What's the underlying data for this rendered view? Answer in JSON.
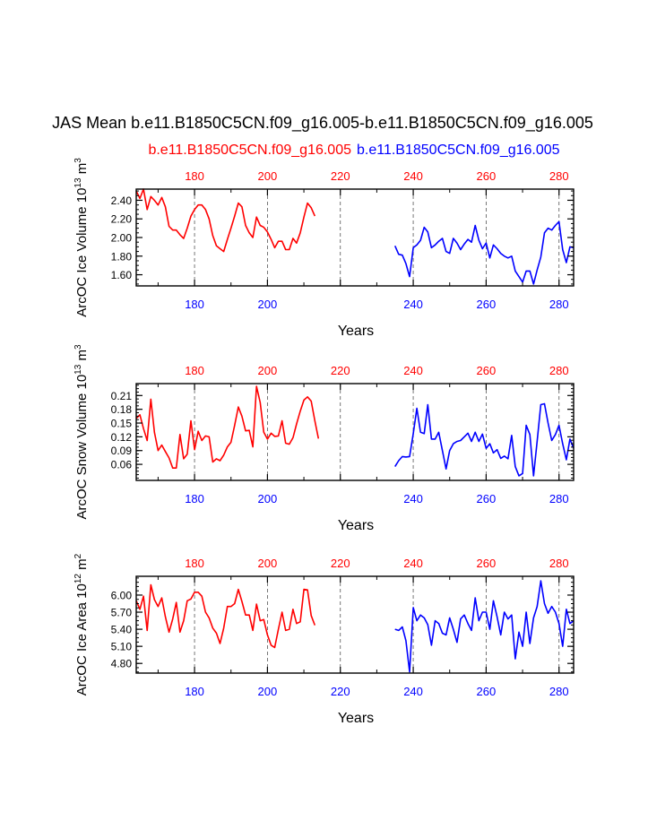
{
  "colors": {
    "red": "#ff0000",
    "blue": "#0000ff",
    "black": "#000000"
  },
  "header": {
    "title": "JAS Mean b.e11.B1850C5CN.f09_g16.005-b.e11.B1850C5CN.f09_g16.005",
    "legend_red": "b.e11.B1850C5CN.f09_g16.005",
    "legend_blue": "b.e11.B1850C5CN.f09_g16.005"
  },
  "chart_data": [
    {
      "type": "line",
      "ylabel_main": "ArcOC Ice Volume 10",
      "ylabel_exp1": "13",
      "ylabel_unit": " m",
      "ylabel_exp2": "3",
      "xlabel": "Years",
      "xlim": [
        164,
        284
      ],
      "ylim": [
        1.48,
        2.52
      ],
      "yticks": [
        1.6,
        1.8,
        2.0,
        2.2,
        2.4
      ],
      "ytick_labels": [
        "1.60",
        "1.80",
        "2.00",
        "2.20",
        "2.40"
      ],
      "top_ticks": [
        180,
        200,
        220,
        240,
        260,
        280
      ],
      "top_tick_labels": [
        "180",
        "200",
        "220",
        "240",
        "260",
        "280"
      ],
      "bottom_ticks": [
        180,
        200,
        240,
        260,
        280
      ],
      "bottom_tick_labels": [
        "180",
        "200",
        "240",
        "260",
        "280"
      ],
      "grid_x": [
        180,
        200,
        220,
        240,
        260,
        280
      ],
      "series": [
        {
          "name": "b.e11.B1850C5CN.f09_g16.005",
          "color": "#ff0000",
          "x_start": 164,
          "values": [
            2.5,
            2.42,
            2.52,
            2.3,
            2.44,
            2.4,
            2.35,
            2.43,
            2.33,
            2.12,
            2.08,
            2.08,
            2.03,
            1.99,
            2.1,
            2.23,
            2.3,
            2.35,
            2.35,
            2.3,
            2.2,
            2.02,
            1.91,
            1.88,
            1.85,
            1.98,
            2.1,
            2.23,
            2.37,
            2.33,
            2.13,
            2.05,
            2.0,
            2.22,
            2.13,
            2.11,
            2.06,
            1.98,
            1.89,
            1.96,
            1.96,
            1.87,
            1.87,
            1.99,
            1.94,
            2.05,
            2.22,
            2.37,
            2.32,
            2.23
          ]
        },
        {
          "name": "b.e11.B1850C5CN.f09_g16.005",
          "color": "#0000ff",
          "x_start": 235,
          "values": [
            1.91,
            1.82,
            1.81,
            1.72,
            1.58,
            1.89,
            1.92,
            1.97,
            2.11,
            2.06,
            1.89,
            1.92,
            1.96,
            1.99,
            1.85,
            1.83,
            1.99,
            1.94,
            1.87,
            1.93,
            1.98,
            1.95,
            2.13,
            1.97,
            1.88,
            1.94,
            1.78,
            1.92,
            1.88,
            1.83,
            1.8,
            1.78,
            1.8,
            1.64,
            1.58,
            1.52,
            1.64,
            1.64,
            1.5,
            1.65,
            1.79,
            2.05,
            2.1,
            2.08,
            2.13,
            2.17,
            1.87,
            1.73,
            1.9,
            1.89
          ]
        }
      ]
    },
    {
      "type": "line",
      "ylabel_main": "ArcOC Snow Volume 10",
      "ylabel_exp1": "13",
      "ylabel_unit": " m",
      "ylabel_exp2": "3",
      "xlabel": "Years",
      "xlim": [
        164,
        284
      ],
      "ylim": [
        0.025,
        0.236
      ],
      "yticks": [
        0.06,
        0.09,
        0.12,
        0.15,
        0.18,
        0.21
      ],
      "ytick_labels": [
        "0.06",
        "0.09",
        "0.12",
        "0.15",
        "0.18",
        "0.21"
      ],
      "top_ticks": [
        180,
        200,
        220,
        240,
        260,
        280
      ],
      "top_tick_labels": [
        "180",
        "200",
        "220",
        "240",
        "260",
        "280"
      ],
      "bottom_ticks": [
        180,
        200,
        240,
        260,
        280
      ],
      "bottom_tick_labels": [
        "180",
        "200",
        "240",
        "260",
        "280"
      ],
      "grid_x": [
        180,
        200,
        220,
        240,
        260,
        280
      ],
      "series": [
        {
          "name": "b.e11.B1850C5CN.f09_g16.005",
          "color": "#ff0000",
          "x_start": 164,
          "values": [
            0.16,
            0.168,
            0.138,
            0.112,
            0.202,
            0.13,
            0.09,
            0.102,
            0.088,
            0.074,
            0.052,
            0.052,
            0.125,
            0.072,
            0.082,
            0.155,
            0.092,
            0.132,
            0.112,
            0.122,
            0.12,
            0.065,
            0.072,
            0.068,
            0.08,
            0.098,
            0.108,
            0.145,
            0.185,
            0.165,
            0.133,
            0.134,
            0.098,
            0.23,
            0.195,
            0.13,
            0.115,
            0.128,
            0.121,
            0.122,
            0.155,
            0.106,
            0.104,
            0.118,
            0.148,
            0.176,
            0.2,
            0.207,
            0.198,
            0.155,
            0.116
          ]
        },
        {
          "name": "b.e11.B1850C5CN.f09_g16.005",
          "color": "#0000ff",
          "x_start": 235,
          "values": [
            0.055,
            0.068,
            0.077,
            0.076,
            0.077,
            0.127,
            0.182,
            0.13,
            0.127,
            0.19,
            0.115,
            0.115,
            0.13,
            0.09,
            0.05,
            0.09,
            0.105,
            0.11,
            0.112,
            0.12,
            0.128,
            0.11,
            0.13,
            0.11,
            0.126,
            0.095,
            0.105,
            0.085,
            0.092,
            0.073,
            0.078,
            0.072,
            0.123,
            0.055,
            0.035,
            0.04,
            0.145,
            0.125,
            0.035,
            0.11,
            0.19,
            0.192,
            0.15,
            0.112,
            0.125,
            0.145,
            0.105,
            0.07,
            0.115,
            0.095
          ]
        }
      ]
    },
    {
      "type": "line",
      "ylabel_main": "ArcOC Ice Area 10",
      "ylabel_exp1": "12",
      "ylabel_unit": " m",
      "ylabel_exp2": "2",
      "xlabel": "Years",
      "xlim": [
        164,
        284
      ],
      "ylim": [
        4.63,
        6.33
      ],
      "yticks": [
        4.8,
        5.1,
        5.4,
        5.7,
        6.0
      ],
      "ytick_labels": [
        "4.80",
        "5.10",
        "5.40",
        "5.70",
        "6.00"
      ],
      "top_ticks": [
        180,
        200,
        220,
        240,
        260,
        280
      ],
      "top_tick_labels": [
        "180",
        "200",
        "220",
        "240",
        "260",
        "280"
      ],
      "bottom_ticks": [
        180,
        200,
        220,
        240,
        260,
        280
      ],
      "bottom_tick_labels": [
        "180",
        "200",
        "220",
        "240",
        "260",
        "280"
      ],
      "grid_x": [
        180,
        200,
        220,
        240,
        260,
        280
      ],
      "series": [
        {
          "name": "b.e11.B1850C5CN.f09_g16.005",
          "color": "#ff0000",
          "x_start": 164,
          "values": [
            5.9,
            5.75,
            5.98,
            5.38,
            6.18,
            5.92,
            5.8,
            5.95,
            5.62,
            5.35,
            5.58,
            5.87,
            5.35,
            5.55,
            5.9,
            5.93,
            6.05,
            6.05,
            5.98,
            5.7,
            5.6,
            5.42,
            5.33,
            5.15,
            5.42,
            5.8,
            5.8,
            5.85,
            6.1,
            5.89,
            5.65,
            5.65,
            5.38,
            5.84,
            5.55,
            5.57,
            5.3,
            5.12,
            5.08,
            5.4,
            5.7,
            5.38,
            5.4,
            5.75,
            5.5,
            5.53,
            6.1,
            6.09,
            5.64,
            5.47
          ]
        },
        {
          "name": "b.e11.B1850C5CN.f09_g16.005",
          "color": "#0000ff",
          "x_start": 235,
          "values": [
            5.4,
            5.38,
            5.44,
            5.2,
            4.65,
            5.78,
            5.55,
            5.65,
            5.6,
            5.48,
            5.12,
            5.55,
            5.5,
            5.33,
            5.3,
            5.6,
            5.4,
            5.17,
            5.58,
            5.65,
            5.5,
            5.38,
            5.95,
            5.55,
            5.7,
            5.7,
            5.4,
            5.9,
            5.62,
            5.3,
            5.7,
            5.58,
            5.65,
            4.88,
            5.35,
            5.1,
            5.7,
            5.15,
            5.6,
            5.8,
            6.25,
            5.85,
            5.68,
            5.8,
            5.7,
            5.5,
            5.1,
            5.75,
            5.5,
            5.55
          ]
        }
      ]
    }
  ]
}
